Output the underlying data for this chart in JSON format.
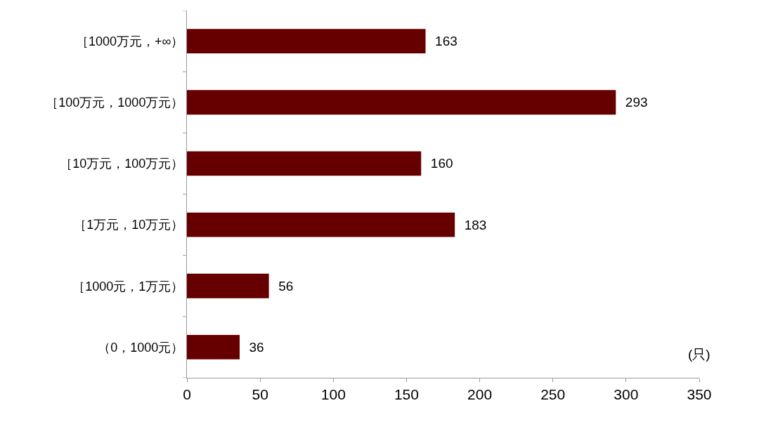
{
  "chart_data": {
    "type": "bar",
    "orientation": "horizontal",
    "categories": [
      "［1000万元，+∞）",
      "［100万元，1000万元）",
      "［10万元，100万元）",
      "［1万元，10万元）",
      "［1000元，1万元）",
      "（0，1000元）"
    ],
    "values": [
      163,
      293,
      160,
      183,
      56,
      36
    ],
    "color": "#660000",
    "xlabel": "(只)",
    "xlim": [
      0,
      350
    ],
    "xticks": [
      0,
      50,
      100,
      150,
      200,
      250,
      300,
      350
    ],
    "data_labels": true
  }
}
